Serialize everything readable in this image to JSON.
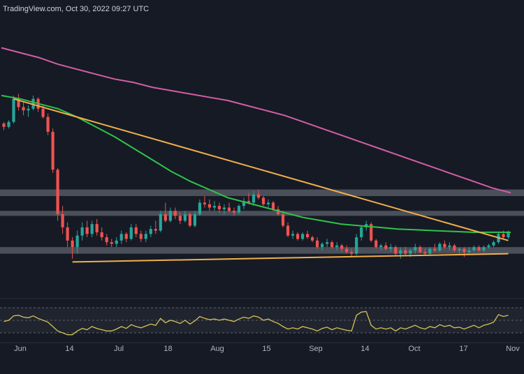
{
  "header": {
    "source": "TradingView.com",
    "timestamp": "Oct 30, 2022 09:27 UTC",
    "separator": ","
  },
  "colors": {
    "background": "#161a25",
    "candle_up": "#26a69a",
    "candle_down": "#ef5350",
    "ma_fast": "#2ec44a",
    "ma_slow": "#d35ea5",
    "trendline": "#f2b04a",
    "zone": "#787b86",
    "rsi": "#d6c455",
    "axis_text": "#b2b5be"
  },
  "chart_data": {
    "type": "candlestick",
    "title": "",
    "x_tick_labels": [
      "Jun",
      "14",
      "Jul",
      "18",
      "Aug",
      "15",
      "Sep",
      "14",
      "Oct",
      "17",
      "Nov"
    ],
    "legend": "none",
    "grid": false,
    "candles": [
      [
        1.75,
        1.76,
        1.71,
        1.73
      ],
      [
        1.73,
        1.77,
        1.72,
        1.76
      ],
      [
        1.76,
        1.92,
        1.75,
        1.9
      ],
      [
        1.9,
        1.93,
        1.83,
        1.85
      ],
      [
        1.85,
        1.88,
        1.8,
        1.83
      ],
      [
        1.83,
        1.86,
        1.79,
        1.84
      ],
      [
        1.84,
        1.92,
        1.83,
        1.9
      ],
      [
        1.9,
        1.91,
        1.82,
        1.84
      ],
      [
        1.84,
        1.86,
        1.78,
        1.79
      ],
      [
        1.79,
        1.81,
        1.68,
        1.7
      ],
      [
        1.7,
        1.72,
        1.45,
        1.47
      ],
      [
        1.47,
        1.48,
        1.16,
        1.2
      ],
      [
        1.2,
        1.25,
        1.08,
        1.12
      ],
      [
        1.12,
        1.15,
        1.0,
        1.04
      ],
      [
        1.04,
        1.06,
        0.93,
        1.0
      ],
      [
        1.0,
        1.1,
        0.96,
        1.07
      ],
      [
        1.07,
        1.15,
        1.04,
        1.12
      ],
      [
        1.12,
        1.16,
        1.06,
        1.08
      ],
      [
        1.08,
        1.16,
        1.06,
        1.14
      ],
      [
        1.14,
        1.17,
        1.07,
        1.09
      ],
      [
        1.09,
        1.12,
        1.04,
        1.06
      ],
      [
        1.06,
        1.08,
        1.01,
        1.03
      ],
      [
        1.03,
        1.05,
        1.0,
        1.02
      ],
      [
        1.02,
        1.06,
        1.0,
        1.04
      ],
      [
        1.04,
        1.1,
        1.02,
        1.08
      ],
      [
        1.08,
        1.09,
        1.03,
        1.05
      ],
      [
        1.05,
        1.14,
        1.04,
        1.12
      ],
      [
        1.12,
        1.14,
        1.06,
        1.08
      ],
      [
        1.08,
        1.1,
        1.03,
        1.05
      ],
      [
        1.05,
        1.1,
        1.03,
        1.08
      ],
      [
        1.08,
        1.13,
        1.06,
        1.11
      ],
      [
        1.11,
        1.16,
        1.08,
        1.1
      ],
      [
        1.1,
        1.22,
        1.09,
        1.2
      ],
      [
        1.2,
        1.27,
        1.15,
        1.16
      ],
      [
        1.16,
        1.24,
        1.15,
        1.22
      ],
      [
        1.22,
        1.24,
        1.17,
        1.19
      ],
      [
        1.19,
        1.21,
        1.14,
        1.16
      ],
      [
        1.16,
        1.22,
        1.15,
        1.2
      ],
      [
        1.2,
        1.21,
        1.12,
        1.13
      ],
      [
        1.13,
        1.22,
        1.12,
        1.2
      ],
      [
        1.2,
        1.29,
        1.19,
        1.27
      ],
      [
        1.27,
        1.31,
        1.24,
        1.26
      ],
      [
        1.26,
        1.29,
        1.22,
        1.24
      ],
      [
        1.24,
        1.28,
        1.22,
        1.25
      ],
      [
        1.25,
        1.27,
        1.21,
        1.23
      ],
      [
        1.23,
        1.26,
        1.2,
        1.24
      ],
      [
        1.24,
        1.27,
        1.21,
        1.22
      ],
      [
        1.22,
        1.24,
        1.19,
        1.21
      ],
      [
        1.21,
        1.26,
        1.2,
        1.25
      ],
      [
        1.25,
        1.3,
        1.23,
        1.28
      ],
      [
        1.28,
        1.33,
        1.26,
        1.27
      ],
      [
        1.27,
        1.34,
        1.25,
        1.32
      ],
      [
        1.32,
        1.35,
        1.29,
        1.3
      ],
      [
        1.3,
        1.31,
        1.25,
        1.26
      ],
      [
        1.26,
        1.29,
        1.23,
        1.27
      ],
      [
        1.27,
        1.28,
        1.22,
        1.23
      ],
      [
        1.23,
        1.25,
        1.19,
        1.2
      ],
      [
        1.2,
        1.22,
        1.12,
        1.13
      ],
      [
        1.13,
        1.15,
        1.06,
        1.07
      ],
      [
        1.07,
        1.1,
        1.05,
        1.08
      ],
      [
        1.08,
        1.09,
        1.04,
        1.05
      ],
      [
        1.05,
        1.09,
        1.04,
        1.08
      ],
      [
        1.08,
        1.1,
        1.05,
        1.06
      ],
      [
        1.06,
        1.07,
        1.03,
        1.04
      ],
      [
        1.04,
        1.06,
        0.99,
        1.0
      ],
      [
        1.0,
        1.03,
        0.98,
        1.02
      ],
      [
        1.02,
        1.05,
        1.0,
        1.03
      ],
      [
        1.03,
        1.04,
        0.99,
        1.0
      ],
      [
        1.0,
        1.03,
        0.98,
        1.01
      ],
      [
        1.01,
        1.02,
        0.97,
        0.99
      ],
      [
        0.99,
        1.01,
        0.96,
        0.97
      ],
      [
        0.97,
        0.99,
        0.94,
        0.96
      ],
      [
        0.96,
        1.08,
        0.95,
        1.06
      ],
      [
        1.06,
        1.13,
        1.04,
        1.12
      ],
      [
        1.12,
        1.16,
        1.1,
        1.14
      ],
      [
        1.14,
        1.15,
        1.03,
        1.04
      ],
      [
        1.04,
        1.05,
        0.99,
        1.0
      ],
      [
        1.0,
        1.02,
        0.98,
        1.01
      ],
      [
        1.01,
        1.03,
        0.98,
        0.99
      ],
      [
        0.99,
        1.02,
        0.97,
        1.0
      ],
      [
        1.0,
        1.01,
        0.95,
        0.96
      ],
      [
        0.96,
        1.0,
        0.93,
        0.98
      ],
      [
        0.98,
        1.0,
        0.95,
        0.96
      ],
      [
        0.96,
        0.99,
        0.94,
        0.98
      ],
      [
        0.98,
        1.02,
        0.96,
        1.0
      ],
      [
        1.0,
        1.01,
        0.96,
        0.97
      ],
      [
        0.97,
        0.99,
        0.95,
        0.96
      ],
      [
        0.96,
        1.0,
        0.95,
        0.99
      ],
      [
        0.99,
        1.02,
        0.97,
        0.98
      ],
      [
        0.98,
        1.03,
        0.97,
        1.02
      ],
      [
        1.02,
        1.04,
        0.99,
        1.0
      ],
      [
        1.0,
        1.03,
        0.98,
        1.01
      ],
      [
        1.01,
        1.02,
        0.97,
        0.98
      ],
      [
        0.98,
        1.0,
        0.96,
        0.99
      ],
      [
        0.99,
        1.0,
        0.94,
        0.97
      ],
      [
        0.97,
        1.0,
        0.96,
        0.98
      ],
      [
        0.98,
        1.01,
        0.97,
        1.0
      ],
      [
        1.0,
        1.01,
        0.97,
        0.98
      ],
      [
        0.98,
        1.01,
        0.97,
        1.0
      ],
      [
        1.0,
        1.02,
        0.99,
        1.01
      ],
      [
        1.01,
        1.04,
        1.0,
        1.03
      ],
      [
        1.03,
        1.09,
        1.02,
        1.08
      ],
      [
        1.08,
        1.1,
        1.05,
        1.06
      ],
      [
        1.06,
        1.1,
        1.05,
        1.09
      ]
    ],
    "ma_fast": [
      1.92,
      1.9,
      1.87,
      1.84,
      1.79,
      1.73,
      1.67,
      1.6,
      1.53,
      1.46,
      1.4,
      1.35,
      1.3,
      1.27,
      1.24,
      1.21,
      1.18,
      1.16,
      1.14,
      1.13,
      1.12,
      1.11,
      1.105,
      1.1,
      1.095,
      1.09,
      1.09,
      1.09
    ],
    "ma_slow": [
      2.21,
      2.18,
      2.15,
      2.11,
      2.08,
      2.05,
      2.02,
      2.0,
      1.97,
      1.95,
      1.93,
      1.91,
      1.89,
      1.86,
      1.83,
      1.8,
      1.76,
      1.72,
      1.68,
      1.64,
      1.6,
      1.56,
      1.52,
      1.48,
      1.44,
      1.4,
      1.36,
      1.33
    ],
    "trendline_upper": [
      1.9,
      1.04
    ],
    "trendline_lower": [
      0.91,
      0.96
    ],
    "zones": [
      [
        1.31,
        1.35
      ],
      [
        1.19,
        1.22
      ],
      [
        0.96,
        1.0
      ]
    ],
    "y_range": [
      0.7,
      2.5
    ],
    "rsi_range": [
      20,
      80
    ],
    "rsi": [
      48,
      50,
      57,
      58,
      55,
      54,
      57,
      53,
      50,
      47,
      40,
      33,
      30,
      27,
      27,
      33,
      37,
      35,
      40,
      37,
      35,
      33,
      33,
      36,
      40,
      37,
      43,
      40,
      38,
      41,
      44,
      42,
      53,
      46,
      50,
      48,
      45,
      50,
      44,
      49,
      56,
      53,
      51,
      52,
      50,
      52,
      50,
      48,
      52,
      55,
      53,
      57,
      55,
      50,
      52,
      48,
      45,
      40,
      36,
      38,
      36,
      40,
      38,
      36,
      33,
      37,
      39,
      35,
      38,
      36,
      34,
      33,
      58,
      63,
      64,
      42,
      36,
      38,
      36,
      38,
      33,
      38,
      36,
      39,
      42,
      38,
      36,
      40,
      38,
      43,
      40,
      42,
      38,
      39,
      36,
      39,
      42,
      38,
      42,
      44,
      47,
      59,
      56,
      58
    ]
  }
}
